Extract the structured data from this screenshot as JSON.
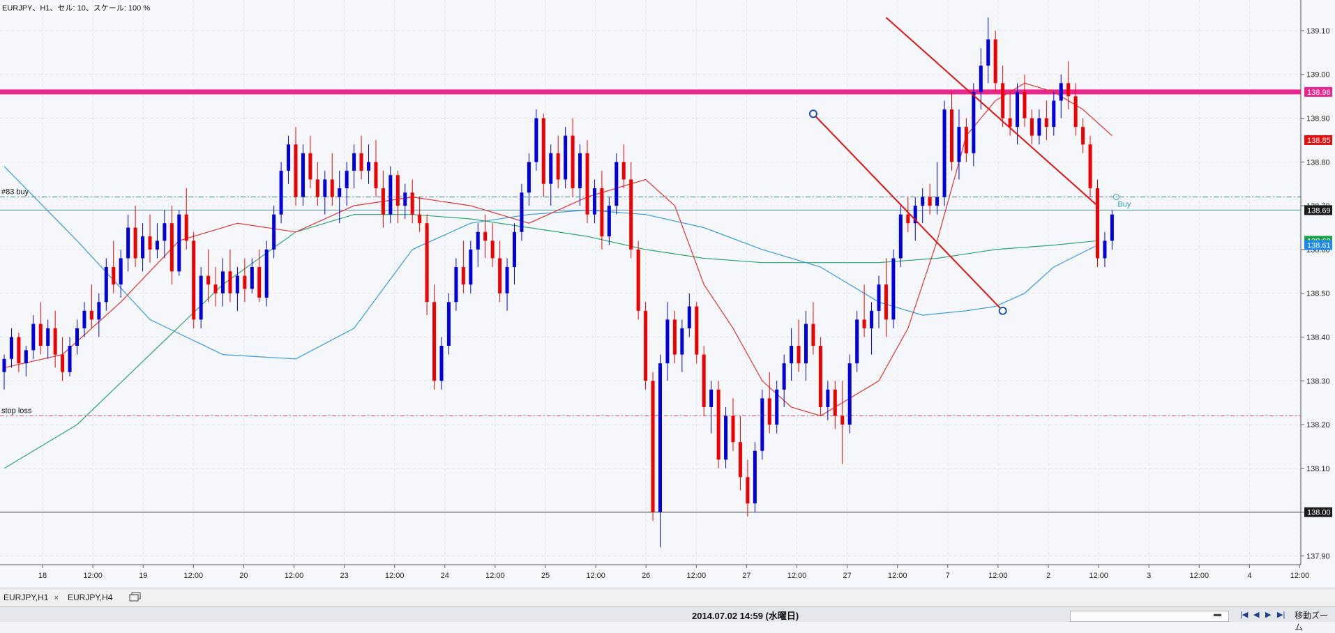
{
  "header": {
    "info_text": "EURJPY、H1、セル: 10、スケール: 100 %"
  },
  "chart_data": {
    "type": "candlestick",
    "symbol": "EURJPY",
    "timeframe": "H1",
    "ylim": [
      137.88,
      139.17
    ],
    "y_ticks": [
      "139.10",
      "139.00",
      "138.90",
      "138.80",
      "138.70",
      "138.60",
      "138.50",
      "138.40",
      "138.30",
      "138.20",
      "138.10",
      "138.00",
      "137.90"
    ],
    "x_ticks": [
      "18",
      "12:00",
      "19",
      "12:00",
      "20",
      "12:00",
      "23",
      "12:00",
      "24",
      "12:00",
      "25",
      "12:00",
      "26",
      "12:00",
      "27",
      "12:00",
      "27",
      "12:00",
      "7",
      "12:00",
      "2",
      "12:00",
      "3",
      "12:00",
      "4",
      "12:00"
    ],
    "bars": [
      [
        138.32,
        138.36,
        138.28,
        138.35
      ],
      [
        138.35,
        138.42,
        138.33,
        138.4
      ],
      [
        138.4,
        138.41,
        138.32,
        138.34
      ],
      [
        138.34,
        138.38,
        138.31,
        138.37
      ],
      [
        138.37,
        138.45,
        138.35,
        138.43
      ],
      [
        138.43,
        138.48,
        138.36,
        138.38
      ],
      [
        138.38,
        138.44,
        138.35,
        138.42
      ],
      [
        138.42,
        138.46,
        138.33,
        138.36
      ],
      [
        138.36,
        138.4,
        138.3,
        138.32
      ],
      [
        138.32,
        138.4,
        138.31,
        138.38
      ],
      [
        138.38,
        138.44,
        138.36,
        138.42
      ],
      [
        138.42,
        138.48,
        138.4,
        138.46
      ],
      [
        138.46,
        138.52,
        138.42,
        138.44
      ],
      [
        138.44,
        138.5,
        138.4,
        138.48
      ],
      [
        138.48,
        138.58,
        138.46,
        138.56
      ],
      [
        138.56,
        138.62,
        138.5,
        138.52
      ],
      [
        138.52,
        138.6,
        138.49,
        138.58
      ],
      [
        138.58,
        138.68,
        138.55,
        138.65
      ],
      [
        138.65,
        138.7,
        138.56,
        138.58
      ],
      [
        138.58,
        138.66,
        138.55,
        138.63
      ],
      [
        138.63,
        138.68,
        138.57,
        138.6
      ],
      [
        138.6,
        138.66,
        138.58,
        138.62
      ],
      [
        138.62,
        138.69,
        138.58,
        138.66
      ],
      [
        138.66,
        138.7,
        138.52,
        138.55
      ],
      [
        138.55,
        138.69,
        138.54,
        138.68
      ],
      [
        138.68,
        138.74,
        138.6,
        138.62
      ],
      [
        138.62,
        138.64,
        138.42,
        138.44
      ],
      [
        138.44,
        138.56,
        138.42,
        138.54
      ],
      [
        138.54,
        138.6,
        138.48,
        138.52
      ],
      [
        138.52,
        138.56,
        138.47,
        138.5
      ],
      [
        138.5,
        138.58,
        138.47,
        138.55
      ],
      [
        138.55,
        138.6,
        138.48,
        138.5
      ],
      [
        138.5,
        138.56,
        138.46,
        138.54
      ],
      [
        138.54,
        138.58,
        138.48,
        138.51
      ],
      [
        138.51,
        138.58,
        138.5,
        138.56
      ],
      [
        138.56,
        138.6,
        138.48,
        138.49
      ],
      [
        138.49,
        138.62,
        138.47,
        138.6
      ],
      [
        138.6,
        138.7,
        138.58,
        138.68
      ],
      [
        138.68,
        138.8,
        138.66,
        138.78
      ],
      [
        138.78,
        138.86,
        138.75,
        138.84
      ],
      [
        138.84,
        138.88,
        138.7,
        138.72
      ],
      [
        138.72,
        138.84,
        138.7,
        138.82
      ],
      [
        138.82,
        138.86,
        138.74,
        138.76
      ],
      [
        138.76,
        138.8,
        138.7,
        138.72
      ],
      [
        138.72,
        138.78,
        138.68,
        138.76
      ],
      [
        138.76,
        138.82,
        138.7,
        138.72
      ],
      [
        138.72,
        138.78,
        138.66,
        138.74
      ],
      [
        138.74,
        138.8,
        138.7,
        138.78
      ],
      [
        138.78,
        138.84,
        138.74,
        138.82
      ],
      [
        138.82,
        138.86,
        138.76,
        138.78
      ],
      [
        138.78,
        138.84,
        138.75,
        138.8
      ],
      [
        138.8,
        138.85,
        138.72,
        138.74
      ],
      [
        138.74,
        138.78,
        138.65,
        138.68
      ],
      [
        138.68,
        138.79,
        138.66,
        138.77
      ],
      [
        138.77,
        138.78,
        138.66,
        138.7
      ],
      [
        138.7,
        138.75,
        138.67,
        138.73
      ],
      [
        138.73,
        138.76,
        138.66,
        138.68
      ],
      [
        138.68,
        138.72,
        138.64,
        138.66
      ],
      [
        138.66,
        138.68,
        138.45,
        138.48
      ],
      [
        138.48,
        138.52,
        138.28,
        138.3
      ],
      [
        138.3,
        138.4,
        138.28,
        138.38
      ],
      [
        138.38,
        138.5,
        138.36,
        138.48
      ],
      [
        138.48,
        138.58,
        138.46,
        138.56
      ],
      [
        138.56,
        138.62,
        138.5,
        138.52
      ],
      [
        138.52,
        138.62,
        138.5,
        138.6
      ],
      [
        138.6,
        138.66,
        138.56,
        138.64
      ],
      [
        138.64,
        138.68,
        138.58,
        138.62
      ],
      [
        138.62,
        138.66,
        138.56,
        138.58
      ],
      [
        138.58,
        138.62,
        138.48,
        138.5
      ],
      [
        138.5,
        138.58,
        138.46,
        138.56
      ],
      [
        138.56,
        138.66,
        138.52,
        138.64
      ],
      [
        138.64,
        138.75,
        138.62,
        138.73
      ],
      [
        138.73,
        138.82,
        138.7,
        138.8
      ],
      [
        138.8,
        138.92,
        138.78,
        138.9
      ],
      [
        138.9,
        138.91,
        138.72,
        138.75
      ],
      [
        138.75,
        138.84,
        138.7,
        138.82
      ],
      [
        138.82,
        138.86,
        138.74,
        138.76
      ],
      [
        138.76,
        138.88,
        138.74,
        138.86
      ],
      [
        138.86,
        138.9,
        138.72,
        138.74
      ],
      [
        138.74,
        138.84,
        138.7,
        138.82
      ],
      [
        138.82,
        138.85,
        138.66,
        138.68
      ],
      [
        138.68,
        138.76,
        138.66,
        138.74
      ],
      [
        138.74,
        138.78,
        138.6,
        138.63
      ],
      [
        138.63,
        138.72,
        138.61,
        138.7
      ],
      [
        138.7,
        138.82,
        138.68,
        138.8
      ],
      [
        138.8,
        138.84,
        138.74,
        138.76
      ],
      [
        138.76,
        138.8,
        138.58,
        138.6
      ],
      [
        138.6,
        138.62,
        138.44,
        138.46
      ],
      [
        138.46,
        138.48,
        138.28,
        138.3
      ],
      [
        138.3,
        138.32,
        137.98,
        138.0
      ],
      [
        138.0,
        138.36,
        137.92,
        138.34
      ],
      [
        138.34,
        138.48,
        138.3,
        138.44
      ],
      [
        138.44,
        138.46,
        138.34,
        138.36
      ],
      [
        138.36,
        138.44,
        138.32,
        138.42
      ],
      [
        138.42,
        138.5,
        138.4,
        138.47
      ],
      [
        138.47,
        138.48,
        138.34,
        138.36
      ],
      [
        138.36,
        138.38,
        138.22,
        138.24
      ],
      [
        138.24,
        138.3,
        138.18,
        138.28
      ],
      [
        138.28,
        138.3,
        138.1,
        138.12
      ],
      [
        138.12,
        138.24,
        138.1,
        138.22
      ],
      [
        138.22,
        138.26,
        138.14,
        138.16
      ],
      [
        138.16,
        138.22,
        138.05,
        138.08
      ],
      [
        138.08,
        138.12,
        137.99,
        138.02
      ],
      [
        138.02,
        138.16,
        138.0,
        138.14
      ],
      [
        138.14,
        138.28,
        138.12,
        138.26
      ],
      [
        138.26,
        138.32,
        138.18,
        138.2
      ],
      [
        138.2,
        138.3,
        138.18,
        138.28
      ],
      [
        138.28,
        138.36,
        138.24,
        138.34
      ],
      [
        138.34,
        138.42,
        138.3,
        138.38
      ],
      [
        138.38,
        138.44,
        138.32,
        138.34
      ],
      [
        138.34,
        138.46,
        138.3,
        138.43
      ],
      [
        138.43,
        138.48,
        138.36,
        138.38
      ],
      [
        138.38,
        138.4,
        138.22,
        138.24
      ],
      [
        138.24,
        138.3,
        138.21,
        138.28
      ],
      [
        138.28,
        138.3,
        138.19,
        138.22
      ],
      [
        138.22,
        138.3,
        138.11,
        138.2
      ],
      [
        138.2,
        138.36,
        138.18,
        138.34
      ],
      [
        138.34,
        138.46,
        138.32,
        138.44
      ],
      [
        138.44,
        138.52,
        138.4,
        138.42
      ],
      [
        138.42,
        138.48,
        138.36,
        138.46
      ],
      [
        138.46,
        138.54,
        138.42,
        138.52
      ],
      [
        138.52,
        138.58,
        138.4,
        138.44
      ],
      [
        138.44,
        138.6,
        138.42,
        138.58
      ],
      [
        138.58,
        138.7,
        138.56,
        138.68
      ],
      [
        138.68,
        138.72,
        138.64,
        138.66
      ],
      [
        138.66,
        138.72,
        138.62,
        138.7
      ],
      [
        138.7,
        138.74,
        138.66,
        138.72
      ],
      [
        138.72,
        138.75,
        138.68,
        138.7
      ],
      [
        138.7,
        138.8,
        138.68,
        138.72
      ],
      [
        138.72,
        138.94,
        138.7,
        138.92
      ],
      [
        138.92,
        138.96,
        138.78,
        138.8
      ],
      [
        138.8,
        138.92,
        138.76,
        138.88
      ],
      [
        138.88,
        138.9,
        138.8,
        138.82
      ],
      [
        138.82,
        138.98,
        138.79,
        138.96
      ],
      [
        138.96,
        139.06,
        138.92,
        139.02
      ],
      [
        139.02,
        139.13,
        138.98,
        139.08
      ],
      [
        139.08,
        139.1,
        138.96,
        138.98
      ],
      [
        138.98,
        139.02,
        138.88,
        138.9
      ],
      [
        138.9,
        138.96,
        138.86,
        138.88
      ],
      [
        138.88,
        138.98,
        138.84,
        138.96
      ],
      [
        138.96,
        139.0,
        138.88,
        138.9
      ],
      [
        138.9,
        138.92,
        138.84,
        138.86
      ],
      [
        138.86,
        138.92,
        138.84,
        138.9
      ],
      [
        138.9,
        138.94,
        138.85,
        138.88
      ],
      [
        138.88,
        138.96,
        138.86,
        138.94
      ],
      [
        138.94,
        139.0,
        138.9,
        138.98
      ],
      [
        138.98,
        139.03,
        138.92,
        138.95
      ],
      [
        138.95,
        138.98,
        138.86,
        138.88
      ],
      [
        138.88,
        138.9,
        138.82,
        138.84
      ],
      [
        138.84,
        138.86,
        138.72,
        138.74
      ],
      [
        138.74,
        138.76,
        138.56,
        138.58
      ],
      [
        138.58,
        138.64,
        138.56,
        138.62
      ],
      [
        138.62,
        138.69,
        138.6,
        138.68
      ]
    ],
    "ma_fast": [
      [
        0,
        138.33
      ],
      [
        8,
        138.36
      ],
      [
        16,
        138.48
      ],
      [
        24,
        138.62
      ],
      [
        32,
        138.66
      ],
      [
        40,
        138.64
      ],
      [
        48,
        138.7
      ],
      [
        56,
        138.72
      ],
      [
        64,
        138.7
      ],
      [
        72,
        138.66
      ],
      [
        80,
        138.72
      ],
      [
        88,
        138.76
      ],
      [
        92,
        138.7
      ],
      [
        96,
        138.52
      ],
      [
        100,
        138.42
      ],
      [
        104,
        138.3
      ],
      [
        108,
        138.24
      ],
      [
        112,
        138.22
      ],
      [
        116,
        138.26
      ],
      [
        120,
        138.3
      ],
      [
        124,
        138.42
      ],
      [
        128,
        138.62
      ],
      [
        132,
        138.86
      ],
      [
        136,
        138.94
      ],
      [
        140,
        138.98
      ],
      [
        144,
        138.96
      ],
      [
        148,
        138.92
      ],
      [
        152,
        138.86
      ]
    ],
    "ma_mid": [
      [
        0,
        138.79
      ],
      [
        10,
        138.62
      ],
      [
        20,
        138.44
      ],
      [
        30,
        138.36
      ],
      [
        40,
        138.35
      ],
      [
        48,
        138.42
      ],
      [
        56,
        138.6
      ],
      [
        64,
        138.66
      ],
      [
        72,
        138.68
      ],
      [
        80,
        138.69
      ],
      [
        88,
        138.68
      ],
      [
        96,
        138.65
      ],
      [
        104,
        138.6
      ],
      [
        112,
        138.56
      ],
      [
        120,
        138.48
      ],
      [
        126,
        138.45
      ],
      [
        132,
        138.46
      ],
      [
        136,
        138.47
      ],
      [
        140,
        138.5
      ],
      [
        144,
        138.56
      ],
      [
        150,
        138.61
      ]
    ],
    "ma_slow": [
      [
        0,
        138.1
      ],
      [
        10,
        138.2
      ],
      [
        20,
        138.36
      ],
      [
        30,
        138.52
      ],
      [
        40,
        138.64
      ],
      [
        48,
        138.68
      ],
      [
        56,
        138.68
      ],
      [
        64,
        138.67
      ],
      [
        72,
        138.65
      ],
      [
        80,
        138.63
      ],
      [
        88,
        138.6
      ],
      [
        96,
        138.58
      ],
      [
        104,
        138.57
      ],
      [
        112,
        138.57
      ],
      [
        120,
        138.57
      ],
      [
        128,
        138.58
      ],
      [
        136,
        138.6
      ],
      [
        144,
        138.61
      ],
      [
        150,
        138.62
      ]
    ],
    "levels": {
      "resistance": 138.96,
      "buy": 138.72,
      "current": 138.69,
      "stop_loss": 138.22,
      "support": 138.0
    },
    "line_labels": {
      "buy_line": "#83 buy",
      "stop_line": "stop loss",
      "buy_marker": "Buy"
    },
    "price_tags": [
      {
        "text": "138.96",
        "value": 138.96,
        "color": "#e8268c"
      },
      {
        "text": "138.85",
        "value": 138.85,
        "color": "#e01010"
      },
      {
        "text": "138.69",
        "value": 138.69,
        "color": "#1a1a1a"
      },
      {
        "text": "138.62",
        "value": 138.62,
        "color": "#1e9e4a"
      },
      {
        "text": "138.61",
        "value": 138.61,
        "color": "#1e88e5"
      },
      {
        "text": "138.00",
        "value": 138.0,
        "color": "#1a1a1a"
      }
    ],
    "trendlines": {
      "upper": [
        [
          139.13,
          121
        ],
        [
          138.7,
          150
        ]
      ],
      "lower": [
        [
          138.91,
          111
        ],
        [
          138.46,
          137
        ]
      ]
    }
  },
  "tabs": [
    {
      "label": "EURJPY,H1",
      "close": "×"
    },
    {
      "label": "EURJPY,H4"
    }
  ],
  "status": {
    "datetime": "2014.07.02 14:59 (水曜日)",
    "zoom_label": "移動ズーム",
    "nav": [
      "|◀",
      "◀",
      "▶",
      "▶|"
    ]
  },
  "colors": {
    "bull": "#0000dd",
    "bear": "#ee0000",
    "resistance": "#e8268c",
    "ma_fast": "#e23232",
    "ma_mid": "#3a9bd5",
    "ma_slow": "#2ea56e"
  }
}
